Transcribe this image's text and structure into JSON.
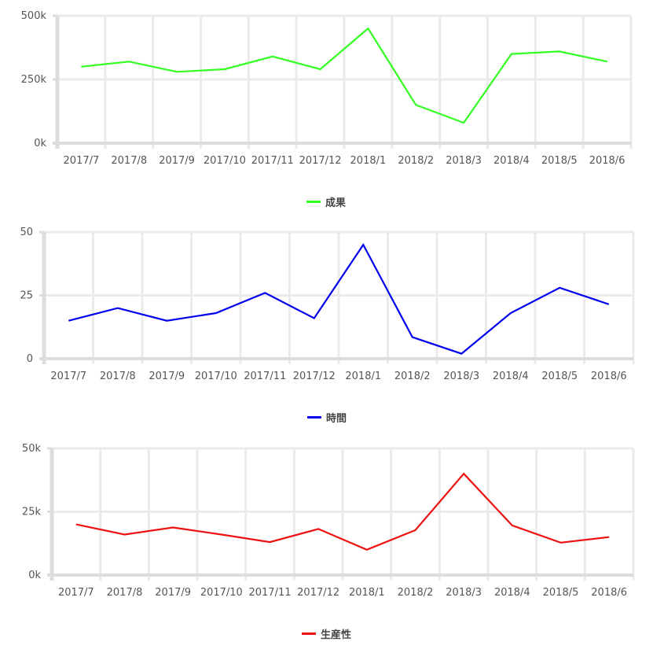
{
  "chart_data": [
    {
      "type": "line",
      "categories": [
        "2017/7",
        "2017/8",
        "2017/9",
        "2017/10",
        "2017/11",
        "2017/12",
        "2018/1",
        "2018/2",
        "2018/3",
        "2018/4",
        "2018/5",
        "2018/6"
      ],
      "series": [
        {
          "name": "成果",
          "color": "#33ff22",
          "values": [
            300000,
            320000,
            280000,
            290000,
            340000,
            290000,
            450000,
            150000,
            80000,
            350000,
            360000,
            320000
          ]
        }
      ],
      "yticks": [
        "0k",
        "250k",
        "500k"
      ],
      "ylim": [
        0,
        500000
      ],
      "grid": true,
      "legend_position": "bottom-center"
    },
    {
      "type": "line",
      "categories": [
        "2017/7",
        "2017/8",
        "2017/9",
        "2017/10",
        "2017/11",
        "2017/12",
        "2018/1",
        "2018/2",
        "2018/3",
        "2018/4",
        "2018/5",
        "2018/6"
      ],
      "series": [
        {
          "name": "時間",
          "color": "#0000ee",
          "values": [
            15,
            20,
            15,
            18,
            26,
            16,
            45,
            8.5,
            2,
            18,
            28,
            21.5
          ]
        }
      ],
      "yticks": [
        "0",
        "25",
        "50"
      ],
      "ylim": [
        0,
        50
      ],
      "grid": true,
      "legend_position": "bottom-center"
    },
    {
      "type": "line",
      "categories": [
        "2017/7",
        "2017/8",
        "2017/9",
        "2017/10",
        "2017/11",
        "2017/12",
        "2018/1",
        "2018/2",
        "2018/3",
        "2018/4",
        "2018/5",
        "2018/6"
      ],
      "series": [
        {
          "name": "生産性",
          "color": "#ee1111",
          "values": [
            20000,
            16000,
            18800,
            16000,
            13000,
            18200,
            10000,
            17700,
            40000,
            19600,
            12800,
            15000
          ]
        }
      ],
      "yticks": [
        "0k",
        "25k",
        "50k"
      ],
      "ylim": [
        0,
        50000
      ],
      "grid": true,
      "legend_position": "bottom-center"
    }
  ]
}
